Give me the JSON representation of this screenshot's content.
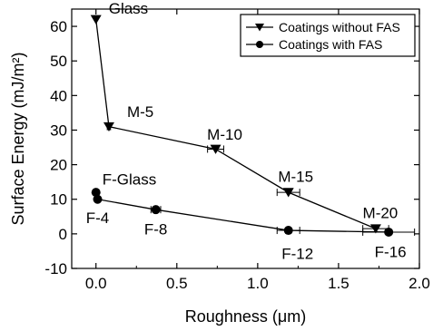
{
  "chart_data": {
    "type": "scatter",
    "title": "",
    "xlabel": "Roughness (μm)",
    "ylabel": "Surface Energy (mJ/m²)",
    "xlim": [
      -0.15,
      2.0
    ],
    "ylim": [
      -10,
      65
    ],
    "xticks": [
      0.0,
      0.5,
      1.0,
      1.5,
      2.0
    ],
    "xtick_labels": [
      "0.0",
      "0.5",
      "1.0",
      "1.5",
      "2.0"
    ],
    "yticks": [
      -10,
      0,
      10,
      20,
      30,
      40,
      50,
      60
    ],
    "ytick_labels": [
      "-10",
      "0",
      "10",
      "20",
      "30",
      "40",
      "50",
      "60"
    ],
    "grid": false,
    "legend_position": "top-right",
    "series": [
      {
        "name": "Coatings without FAS",
        "marker": "triangle-down",
        "color": "#000000",
        "points": [
          {
            "x": 0.0,
            "y": 62,
            "xerr": 0,
            "label": "Glass"
          },
          {
            "x": 0.08,
            "y": 31,
            "xerr": 0.01,
            "label": "M-5"
          },
          {
            "x": 0.74,
            "y": 24.5,
            "xerr": 0.05,
            "label": "M-10"
          },
          {
            "x": 1.19,
            "y": 12,
            "xerr": 0.07,
            "label": "M-15"
          },
          {
            "x": 1.73,
            "y": 1.5,
            "xerr": 0.08,
            "label": "M-20"
          }
        ]
      },
      {
        "name": "Coatings with FAS",
        "marker": "circle",
        "color": "#000000",
        "points": [
          {
            "x": 0.0,
            "y": 12,
            "xerr": 0,
            "label": "F-Glass"
          },
          {
            "x": 0.01,
            "y": 10,
            "xerr": 0,
            "label": "F-4"
          },
          {
            "x": 0.37,
            "y": 7,
            "xerr": 0.03,
            "label": "F-8"
          },
          {
            "x": 1.19,
            "y": 1,
            "xerr": 0.07,
            "label": "F-12"
          },
          {
            "x": 1.81,
            "y": 0.5,
            "xerr": 0.16,
            "label": "F-16"
          }
        ]
      }
    ]
  }
}
